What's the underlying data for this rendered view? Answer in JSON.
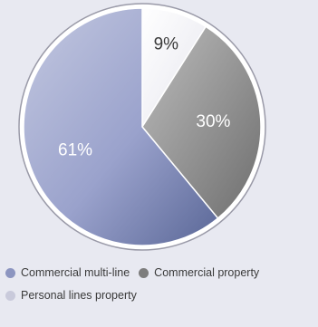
{
  "chart_data": {
    "type": "pie",
    "title": "",
    "slices": [
      {
        "label": "Personal lines property",
        "value": 9,
        "display": "9%",
        "color": "#f1f1f5",
        "text_color": "#3a3a3a"
      },
      {
        "label": "Commercial property",
        "value": 30,
        "display": "30%",
        "color": "#8a8a8a",
        "text_color": "#ffffff"
      },
      {
        "label": "Commercial multi-line",
        "value": 61,
        "display": "61%",
        "color": "#8c95c0",
        "text_color": "#ffffff"
      }
    ],
    "legend": {
      "placement": "bottom",
      "rows": [
        [
          {
            "label": "Commercial multi-line",
            "color": "#8c95c0"
          },
          {
            "label": "Commercial property",
            "color": "#7d7d7d"
          }
        ],
        [
          {
            "label": "Personal lines property",
            "color": "#c9cadb"
          }
        ]
      ]
    }
  }
}
